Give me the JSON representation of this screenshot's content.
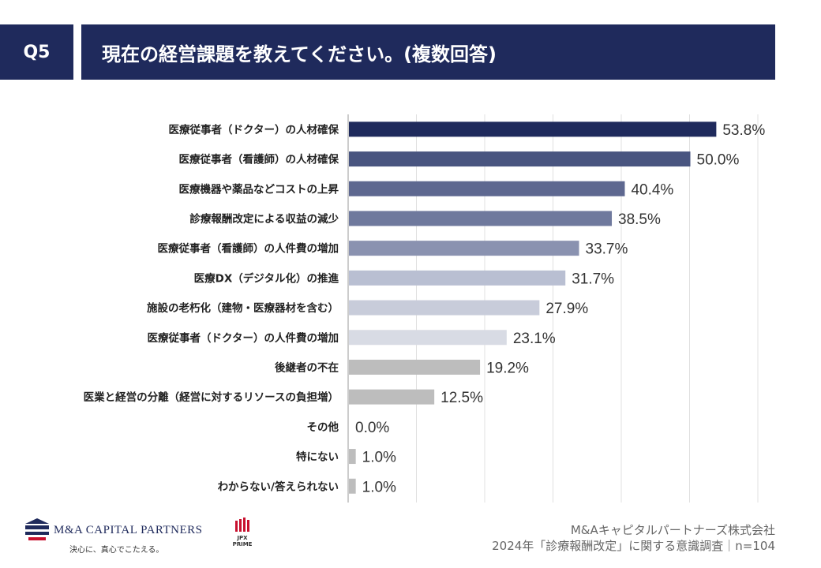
{
  "header": {
    "question": "Q5",
    "title": "現在の経営課題を教えてください。(複数回答)"
  },
  "chart_data": {
    "type": "bar",
    "orientation": "horizontal",
    "title": "現在の経営課題を教えてください。(複数回答)",
    "categories": [
      "医療従事者（ドクター）の人材確保",
      "医療従事者（看護師）の人材確保",
      "医療機器や薬品などコストの上昇",
      "診療報酬改定による収益の減少",
      "医療従事者（看護師）の人件費の増加",
      "医療DX（デジタル化）の推進",
      "施設の老朽化（建物・医療器材を含む）",
      "医療従事者（ドクター）の人件費の増加",
      "後継者の不在",
      "医業と経営の分離（経営に対するリソースの負担増）",
      "その他",
      "特にない",
      "わからない/答えられない"
    ],
    "values": [
      53.8,
      50.0,
      40.4,
      38.5,
      33.7,
      31.7,
      27.9,
      23.1,
      19.2,
      12.5,
      0.0,
      1.0,
      1.0
    ],
    "value_labels": [
      "53.8%",
      "50.0%",
      "40.4%",
      "38.5%",
      "33.7%",
      "31.7%",
      "27.9%",
      "23.1%",
      "19.2%",
      "12.5%",
      "0.0%",
      "1.0%",
      "1.0%"
    ],
    "bar_colors": [
      "#1f2a5c",
      "#495580",
      "#5e6890",
      "#6f799d",
      "#8a92b0",
      "#b9bfd2",
      "#c8ccda",
      "#d8dbe4",
      "#bdbdbd",
      "#bdbdbd",
      "#bdbdbd",
      "#bdbdbd",
      "#bdbdbd"
    ],
    "xlim": [
      0,
      60
    ],
    "grid": true,
    "xlabel": "",
    "ylabel": ""
  },
  "branding": {
    "company_logo_text": "M&A CAPITAL PARTNERS",
    "company_tagline": "決心に、真心でこたえる。",
    "jpx_line1": "JPX",
    "jpx_line2": "PRIME"
  },
  "footer": {
    "company": "M&Aキャピタルパートナーズ株式会社",
    "survey": "2024年「診療報酬改定」に関する意識調査｜n=104"
  }
}
